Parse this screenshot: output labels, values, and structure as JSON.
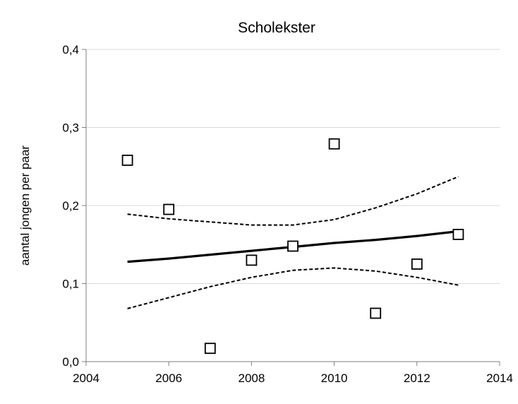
{
  "chart_data": {
    "type": "scatter",
    "title": "Scholekster",
    "xlabel": "",
    "ylabel": "aantal jongen per paar",
    "xlim": [
      2004,
      2014
    ],
    "ylim": [
      0,
      0.4
    ],
    "x_ticks": [
      "2004",
      "2006",
      "2008",
      "2010",
      "2012",
      "2014"
    ],
    "y_ticks": [
      "0,0",
      "0,1",
      "0,2",
      "0,3",
      "0,4"
    ],
    "grid": true,
    "legend": "none",
    "series": [
      {
        "kind": "points",
        "marker": "open-square",
        "x": [
          2005,
          2006,
          2007,
          2008,
          2009,
          2010,
          2011,
          2012,
          2013
        ],
        "y": [
          0.258,
          0.195,
          0.017,
          0.13,
          0.148,
          0.279,
          0.062,
          0.125,
          0.163
        ]
      },
      {
        "kind": "trend",
        "style": "solid",
        "x": [
          2005,
          2006,
          2007,
          2008,
          2009,
          2010,
          2011,
          2012,
          2013
        ],
        "y": [
          0.128,
          0.132,
          0.137,
          0.142,
          0.147,
          0.152,
          0.156,
          0.161,
          0.167
        ]
      },
      {
        "kind": "upper-bound",
        "style": "dashed",
        "x": [
          2005,
          2006,
          2007,
          2008,
          2009,
          2010,
          2011,
          2012,
          2013
        ],
        "y": [
          0.189,
          0.183,
          0.179,
          0.175,
          0.175,
          0.182,
          0.197,
          0.215,
          0.237
        ]
      },
      {
        "kind": "lower-bound",
        "style": "dashed",
        "x": [
          2005,
          2006,
          2007,
          2008,
          2009,
          2010,
          2011,
          2012,
          2013
        ],
        "y": [
          0.068,
          0.082,
          0.096,
          0.108,
          0.117,
          0.12,
          0.116,
          0.108,
          0.098
        ]
      }
    ],
    "colors": {
      "axis": "#7f7f7f",
      "grid": "#d9d9d9",
      "marks": "#000000",
      "background": "#ffffff"
    }
  }
}
